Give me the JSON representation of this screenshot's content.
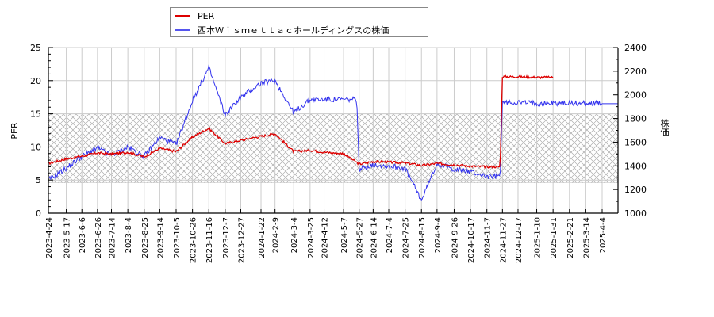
{
  "legend": {
    "items": [
      {
        "label": "PER",
        "color": "#dd0000"
      },
      {
        "label": "西本Ｗｉｓｍｅｔｔａｃホールディングスの株価",
        "color": "#3333ee"
      }
    ]
  },
  "axes": {
    "left_label": "PER",
    "right_label": "株価",
    "left_ticks": [
      "0",
      "5",
      "10",
      "15",
      "20",
      "25"
    ],
    "right_ticks": [
      "1000",
      "1200",
      "1400",
      "1600",
      "1800",
      "2000",
      "2200",
      "2400"
    ]
  },
  "chart_data": {
    "type": "line",
    "title": "",
    "xlabel": "",
    "ylabel": "PER",
    "y2label": "株価",
    "ylim": [
      0,
      25
    ],
    "y2lim": [
      1000,
      2400
    ],
    "grid": true,
    "legend_position": "top-left (outside plot, above)",
    "shaded_band": {
      "axis": "left",
      "from": 4.6,
      "to": 15,
      "style": "crosshatch"
    },
    "x_tick_labels": [
      "2023-4-24",
      "2023-5-17",
      "2023-6-6",
      "2023-6-26",
      "2023-7-14",
      "2023-8-4",
      "2023-8-25",
      "2023-9-14",
      "2023-10-5",
      "2023-10-26",
      "2023-11-16",
      "2023-12-7",
      "2023-12-27",
      "2024-1-22",
      "2024-2-9",
      "2024-3-4",
      "2024-3-25",
      "2024-4-12",
      "2024-5-7",
      "2024-5-27",
      "2024-6-14",
      "2024-7-4",
      "2024-7-25",
      "2024-8-15",
      "2024-9-4",
      "2024-9-26",
      "2024-10-17",
      "2024-11-7",
      "2024-11-27",
      "2024-12-17",
      "2025-1-10",
      "2025-1-31",
      "2025-2-21",
      "2025-3-14",
      "2025-4-4"
    ],
    "series": [
      {
        "name": "PER",
        "axis": "left",
        "color": "#dd0000",
        "x": [
          "2023-4-24",
          "2023-5-17",
          "2023-6-6",
          "2023-6-26",
          "2023-7-14",
          "2023-8-4",
          "2023-8-25",
          "2023-9-14",
          "2023-10-5",
          "2023-10-26",
          "2023-11-16",
          "2023-12-7",
          "2023-12-27",
          "2024-1-22",
          "2024-2-9",
          "2024-3-4",
          "2024-3-25",
          "2024-4-12",
          "2024-5-7",
          "2024-5-27",
          "2024-6-14",
          "2024-7-4",
          "2024-7-25",
          "2024-8-15",
          "2024-9-4",
          "2024-9-26",
          "2024-10-17",
          "2024-11-7",
          "2024-11-27",
          "2024-12-17",
          "2025-1-10",
          "2025-1-31"
        ],
        "values": [
          7.5,
          8.2,
          8.6,
          9.1,
          8.9,
          9.2,
          8.5,
          9.8,
          9.3,
          11.5,
          12.8,
          10.5,
          11.0,
          11.6,
          12.0,
          9.3,
          9.5,
          9.2,
          9.0,
          7.4,
          7.8,
          7.7,
          7.6,
          7.2,
          7.5,
          7.3,
          7.1,
          7.0,
          20.6,
          20.6,
          20.5,
          20.5
        ]
      },
      {
        "name": "西本Ｗｉｓｍｅｔｔａｃホールディングスの株価",
        "axis": "right",
        "color": "#3333ee",
        "x": [
          "2023-4-24",
          "2023-5-17",
          "2023-6-6",
          "2023-6-26",
          "2023-7-14",
          "2023-8-4",
          "2023-8-25",
          "2023-9-14",
          "2023-10-5",
          "2023-10-26",
          "2023-11-16",
          "2023-12-7",
          "2023-12-27",
          "2024-1-22",
          "2024-2-9",
          "2024-3-4",
          "2024-3-25",
          "2024-4-12",
          "2024-5-7",
          "2024-5-27",
          "2024-6-14",
          "2024-7-4",
          "2024-7-25",
          "2024-8-15",
          "2024-9-4",
          "2024-9-26",
          "2024-10-17",
          "2024-11-7",
          "2024-11-27",
          "2024-12-17",
          "2025-1-10",
          "2025-1-31",
          "2025-2-21",
          "2025-3-14",
          "2025-4-4"
        ],
        "values": [
          1280,
          1380,
          1480,
          1550,
          1490,
          1560,
          1480,
          1640,
          1580,
          1950,
          2230,
          1830,
          1980,
          2100,
          2120,
          1850,
          1960,
          1960,
          1960,
          1370,
          1410,
          1400,
          1380,
          1110,
          1420,
          1370,
          1350,
          1310,
          1935,
          1935,
          1930,
          1930,
          1930,
          1930,
          1925
        ]
      }
    ]
  }
}
